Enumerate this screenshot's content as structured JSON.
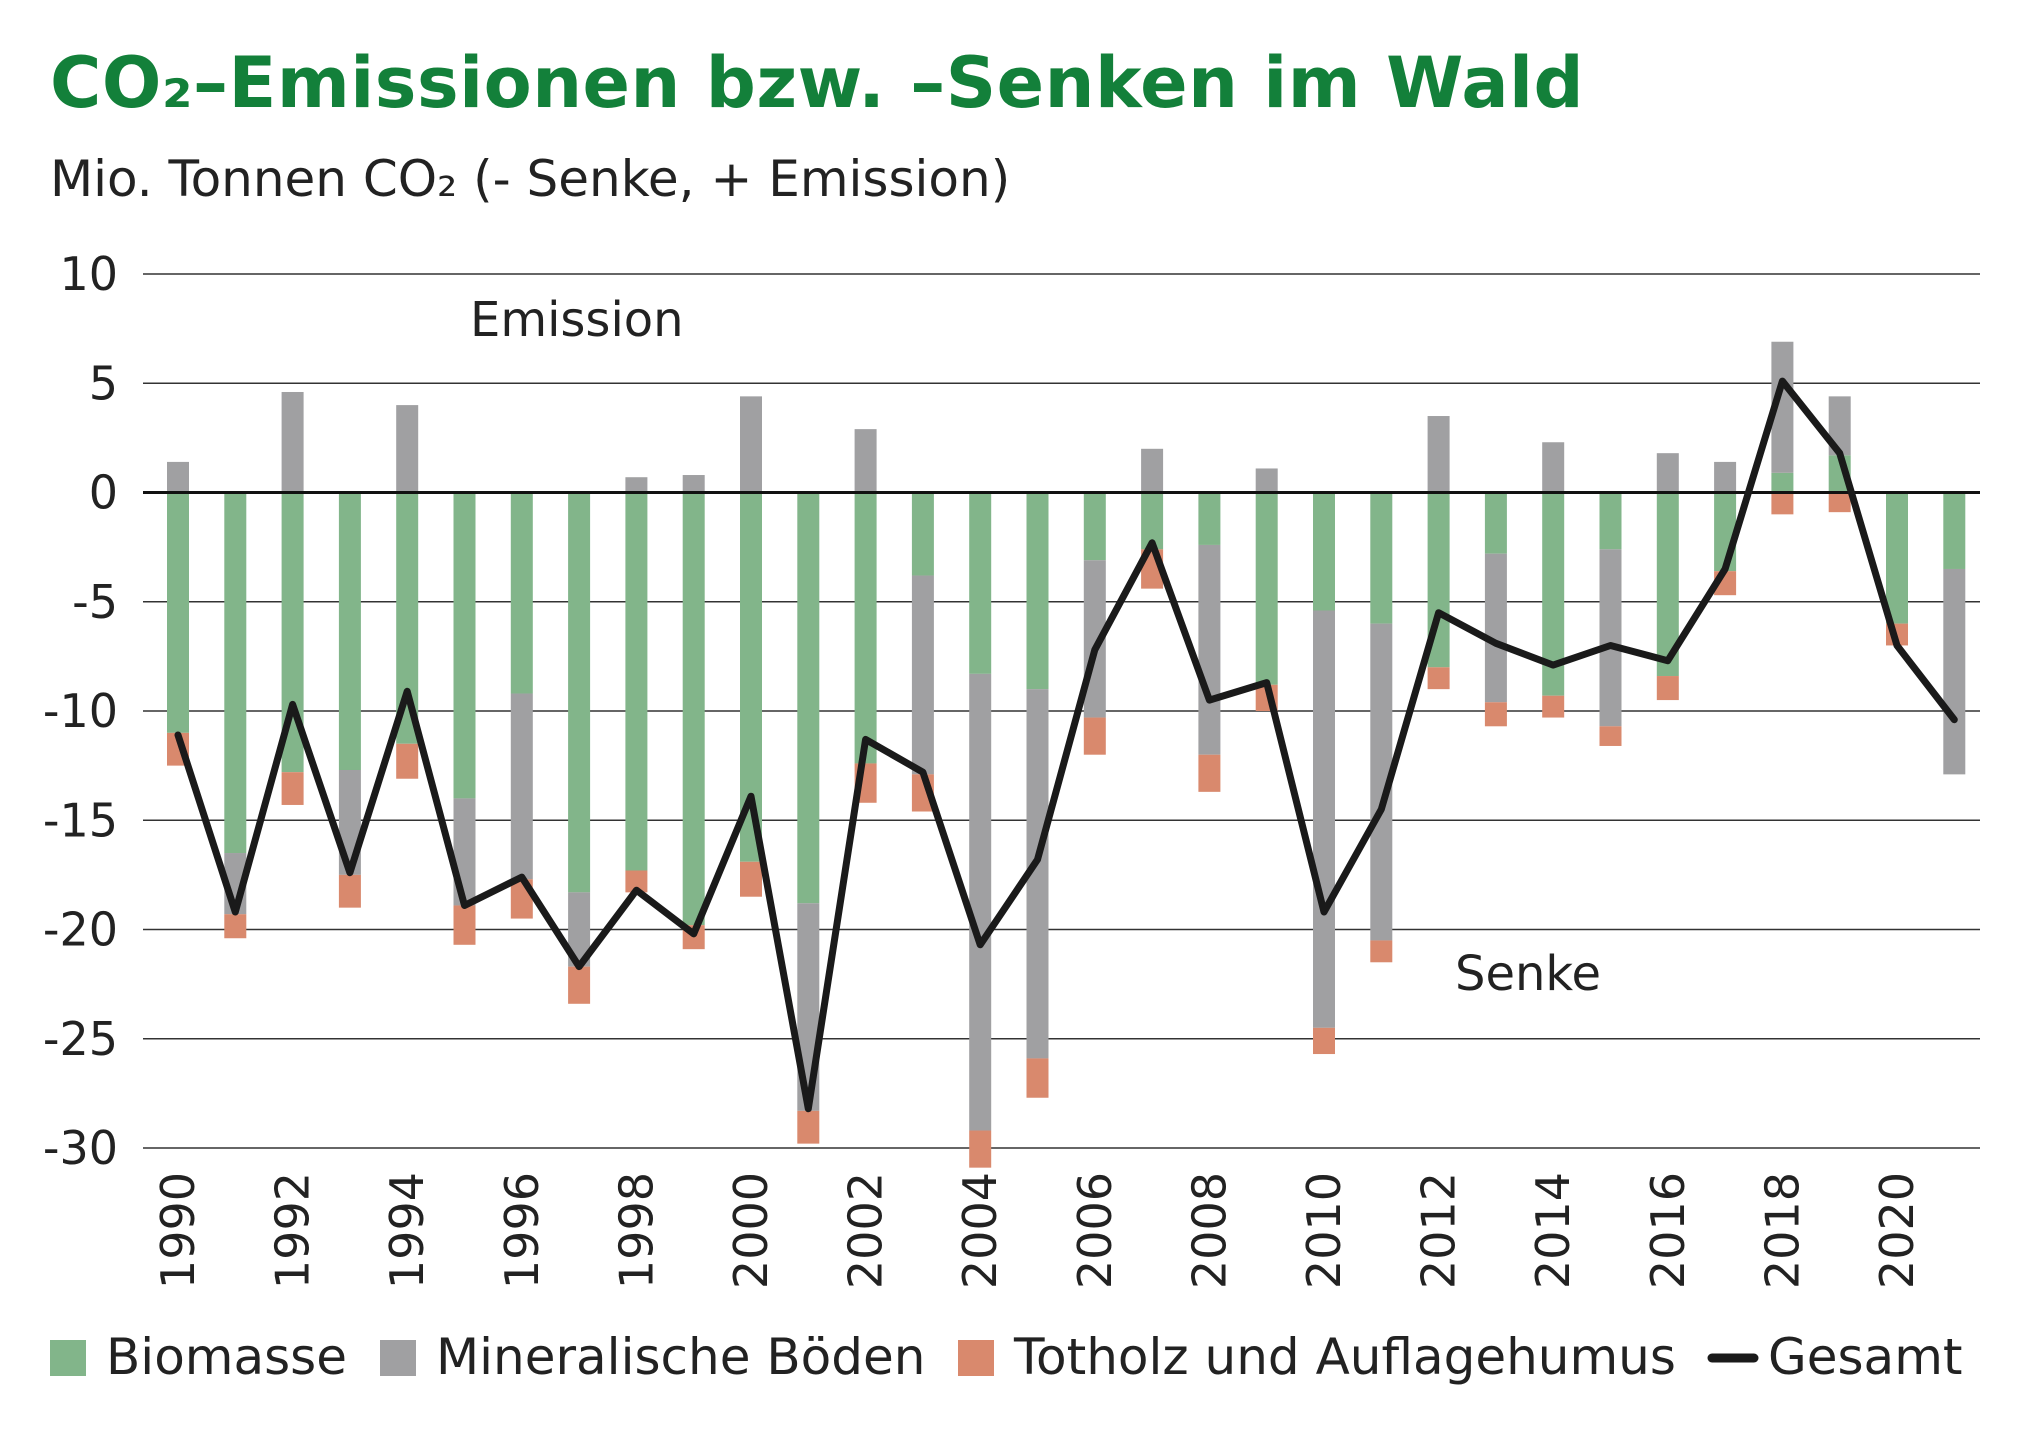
{
  "title": "CO₂–Emissionen bzw. –Senken im Wald",
  "subtitle": "Mio. Tonnen CO₂ (- Senke, + Emission)",
  "colors": {
    "biomasse": "#82b58a",
    "mineralische_boeden": "#a0a0a2",
    "totholz": "#d9896d",
    "gesamt": "#1a1a1a",
    "grid": "#222222",
    "title": "#13803a"
  },
  "chart_data": {
    "type": "bar",
    "stacked": true,
    "title": "CO₂–Emissionen bzw. –Senken im Wald",
    "ylabel": "Mio. Tonnen CO₂ (- Senke, + Emission)",
    "ylim": [
      -30,
      10
    ],
    "y_ticks": [
      10,
      5,
      0,
      -5,
      -10,
      -15,
      -20,
      -25,
      -30
    ],
    "grid": true,
    "legend_position": "bottom",
    "annotations": [
      "Emission",
      "Senke"
    ],
    "x": [
      1990,
      1991,
      1992,
      1993,
      1994,
      1995,
      1996,
      1997,
      1998,
      1999,
      2000,
      2001,
      2002,
      2003,
      2004,
      2005,
      2006,
      2007,
      2008,
      2009,
      2010,
      2011,
      2012,
      2013,
      2014,
      2015,
      2016,
      2017,
      2018,
      2019,
      2020,
      2021
    ],
    "x_tick_labels": [
      "1990",
      "1992",
      "1994",
      "1996",
      "1998",
      "2000",
      "2002",
      "2004",
      "2006",
      "2008",
      "2010",
      "2012",
      "2014",
      "2016",
      "2018",
      "2020"
    ],
    "series": [
      {
        "name": "Biomasse",
        "type": "bar",
        "values": [
          -11.0,
          -16.5,
          -12.8,
          -12.7,
          -11.5,
          -14.0,
          -9.2,
          -18.3,
          -17.3,
          -19.8,
          -16.9,
          -18.8,
          -12.4,
          -3.8,
          -8.3,
          -9.0,
          -3.1,
          -2.6,
          -2.4,
          -8.8,
          -5.4,
          -6.0,
          -8.0,
          -2.8,
          -9.3,
          -2.6,
          -8.4,
          -3.6,
          0.9,
          1.7,
          -6.0,
          -3.5
        ]
      },
      {
        "name": "Mineralische Böden",
        "type": "bar",
        "values": [
          1.4,
          -2.8,
          4.6,
          -4.8,
          4.0,
          -4.9,
          -8.5,
          -3.4,
          0.7,
          0.8,
          4.4,
          -9.5,
          2.9,
          -9.1,
          -20.9,
          -16.9,
          -7.2,
          2.0,
          -9.6,
          1.1,
          -19.1,
          -14.5,
          3.5,
          -6.8,
          2.3,
          -8.1,
          1.8,
          1.4,
          6.0,
          2.7,
          0.0,
          -9.4
        ]
      },
      {
        "name": "Totholz und Auflagehumus",
        "type": "bar",
        "values": [
          -1.5,
          -1.1,
          -1.5,
          -1.5,
          -1.6,
          -1.8,
          -1.8,
          -1.7,
          -1.0,
          -1.1,
          -1.6,
          -1.5,
          -1.8,
          -1.7,
          -1.7,
          -1.8,
          -1.7,
          -1.8,
          -1.7,
          -1.2,
          -1.2,
          -1.0,
          -1.0,
          -1.1,
          -1.0,
          -0.9,
          -1.1,
          -1.1,
          -1.0,
          -0.9,
          -1.0,
          0.0
        ]
      },
      {
        "name": "Gesamt",
        "type": "line",
        "values": [
          -11.1,
          -19.2,
          -9.7,
          -17.4,
          -9.1,
          -18.9,
          -17.6,
          -21.7,
          -18.2,
          -20.2,
          -13.9,
          -28.2,
          -11.3,
          -12.8,
          -20.7,
          -16.8,
          -7.2,
          -2.3,
          -9.5,
          -8.7,
          -19.2,
          -14.5,
          -5.5,
          -6.9,
          -7.9,
          -7.0,
          -7.7,
          -3.5,
          5.1,
          1.8,
          -7.0,
          -10.4
        ]
      }
    ]
  },
  "legend": [
    {
      "label": "Biomasse",
      "color": "#82b58a",
      "kind": "box"
    },
    {
      "label": "Mineralische Böden",
      "color": "#a0a0a2",
      "kind": "box"
    },
    {
      "label": "Totholz und Auflagehumus",
      "color": "#d9896d",
      "kind": "box"
    },
    {
      "label": "Gesamt",
      "color": "#1a1a1a",
      "kind": "line"
    }
  ]
}
